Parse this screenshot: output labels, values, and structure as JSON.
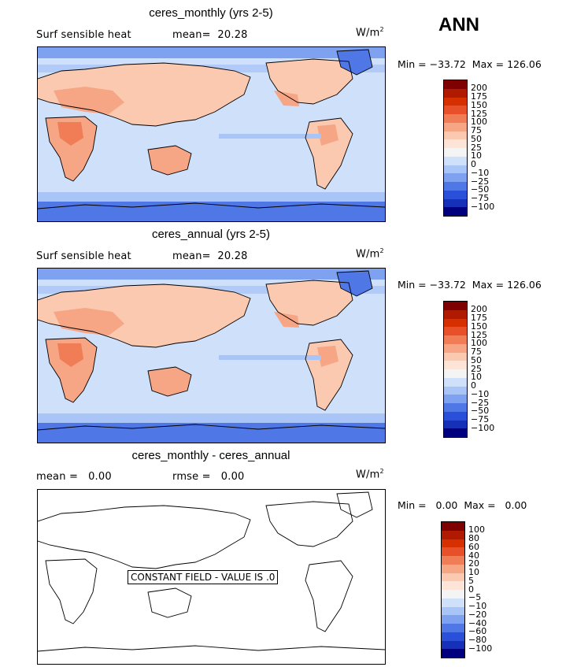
{
  "season": "ANN",
  "panels": [
    {
      "title": "ceres_monthly (yrs 2-5)",
      "left_stat": "Surf sensible heat",
      "right_stat": "mean=  20.28",
      "units": "W/m",
      "units_sup": "2",
      "minmax": "Min = −33.72  Max = 126.06"
    },
    {
      "title": "ceres_annual (yrs 2-5)",
      "left_stat": "Surf sensible heat",
      "right_stat": "mean=  20.28",
      "units": "W/m",
      "units_sup": "2",
      "minmax": "Min = −33.72  Max = 126.06"
    },
    {
      "title": "ceres_monthly - ceres_annual",
      "left_stat": "mean =   0.00",
      "right_stat": "rmse =   0.00",
      "units": "W/m",
      "units_sup": "2",
      "minmax": "Min =   0.00  Max =   0.00",
      "constant_label": "CONSTANT FIELD - VALUE IS .0"
    }
  ],
  "colorbar_main": {
    "labels": [
      "200",
      "175",
      "150",
      "125",
      "100",
      "75",
      "50",
      "25",
      "10",
      "0",
      "−10",
      "−25",
      "−50",
      "−75",
      "−100"
    ],
    "colors": [
      "#7f0000",
      "#b01a00",
      "#d63000",
      "#e8502a",
      "#f07d55",
      "#f6a585",
      "#fbc9b0",
      "#fde4d6",
      "#f4f4f4",
      "#cfe0fb",
      "#a9c4f7",
      "#7ea2ef",
      "#4f78e6",
      "#2a4fd8",
      "#1630b8",
      "#00007f"
    ]
  },
  "colorbar_diff": {
    "labels": [
      "100",
      "80",
      "60",
      "40",
      "20",
      "10",
      "5",
      "0",
      "−5",
      "−10",
      "−20",
      "−40",
      "−60",
      "−80",
      "−100"
    ],
    "colors": [
      "#7f0000",
      "#b01a00",
      "#d63000",
      "#e8502a",
      "#f07d55",
      "#f6a585",
      "#fbc9b0",
      "#fde4d6",
      "#f4f4f4",
      "#cfe0fb",
      "#a9c4f7",
      "#7ea2ef",
      "#4f78e6",
      "#2a4fd8",
      "#1630b8",
      "#00007f"
    ]
  }
}
